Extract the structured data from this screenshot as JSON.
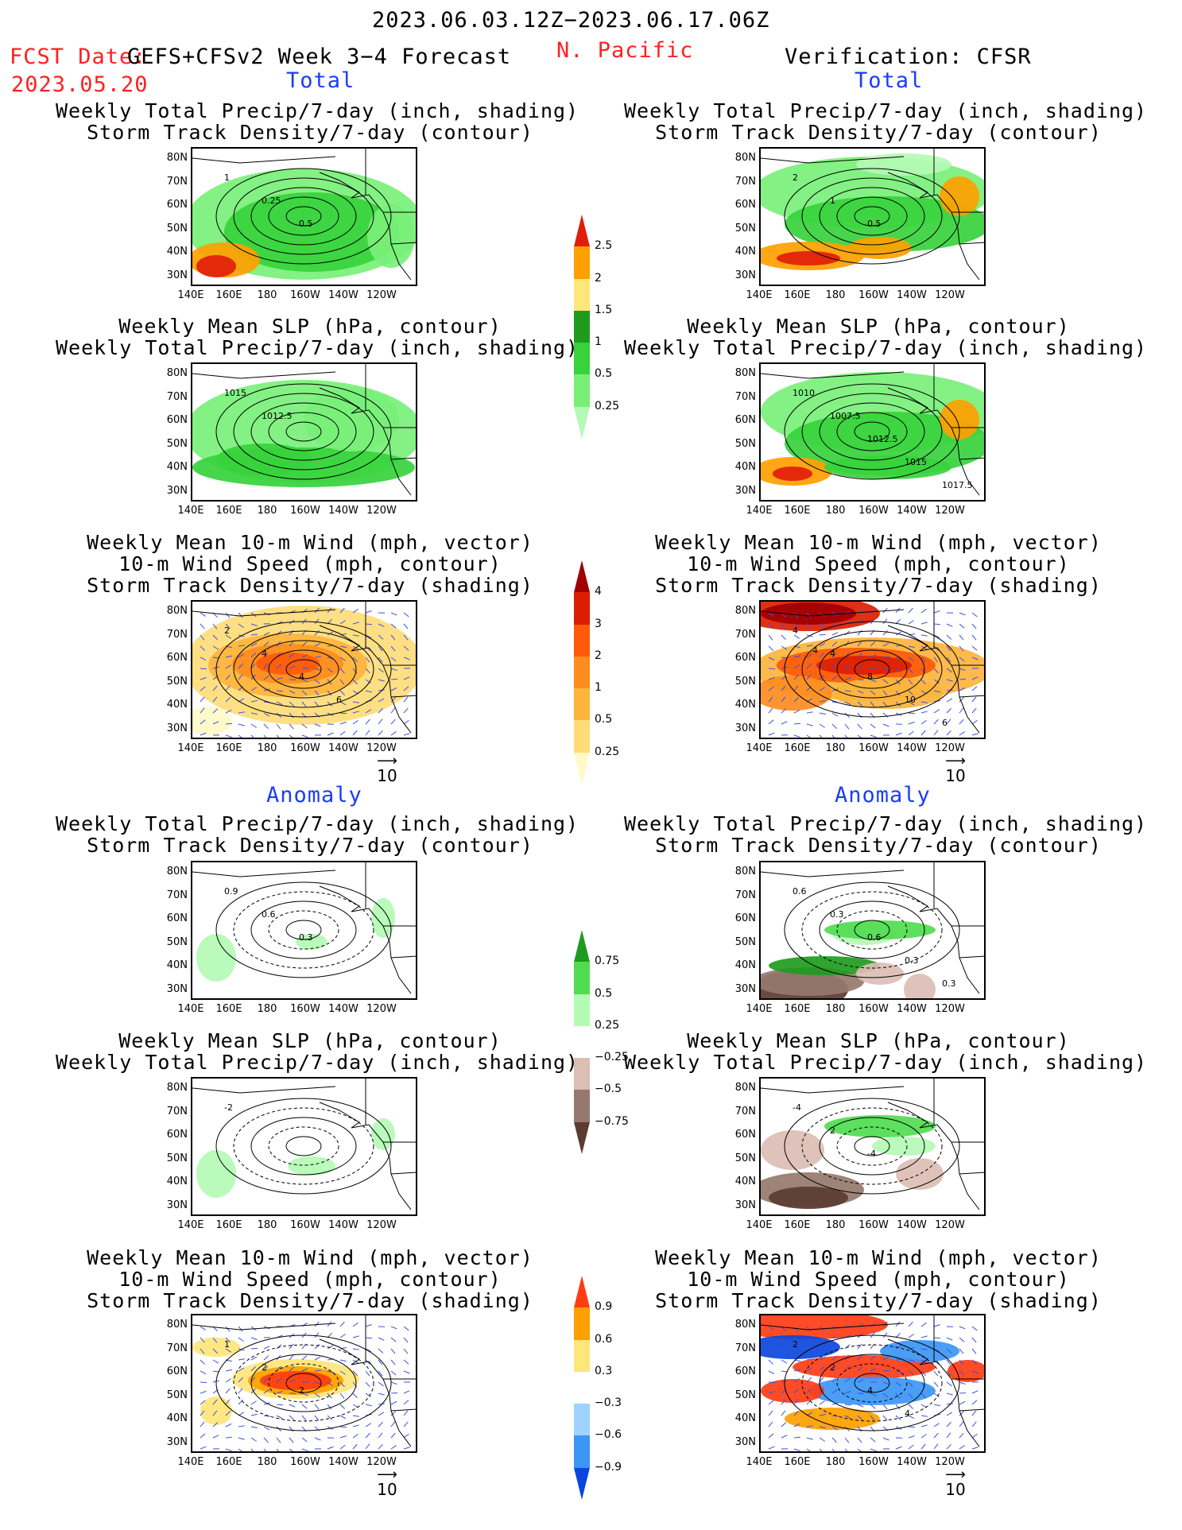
{
  "header": {
    "period": "2023.06.03.12Z−2023.06.17.06Z",
    "fcst_label": "FCST Date:",
    "model_label": "GEFS+CFSv2 Week 3−4 Forecast",
    "fcst_date": "2023.05.20",
    "region": "N. Pacific",
    "verification": "Verification: CFSR"
  },
  "sections": {
    "total": "Total",
    "anomaly": "Anomaly"
  },
  "panel_titles": {
    "precip_storm": "Weekly Total Precip/7-day (inch, shading)\nStorm Track Density/7-day (contour)",
    "slp_precip": "Weekly Mean SLP (hPa, contour)\nWeekly Total Precip/7-day (inch, shading)",
    "wind": "Weekly Mean 10-m Wind (mph, vector)\n10-m Wind Speed (mph, contour)\nStorm Track Density/7-day (shading)"
  },
  "axes": {
    "lat_labels": [
      "80N",
      "70N",
      "60N",
      "50N",
      "40N",
      "30N"
    ],
    "lon_labels": [
      "140E",
      "160E",
      "180",
      "160W",
      "140W",
      "120W"
    ]
  },
  "vector_ref": "10",
  "colorbars": {
    "precip_total": [
      "0.25",
      "0.5",
      "1",
      "1.5",
      "2",
      "2.5"
    ],
    "storm_total": [
      "0.25",
      "0.5",
      "1",
      "2",
      "3",
      "4"
    ],
    "precip_anom": [
      "−0.75",
      "−0.5",
      "−0.25",
      "0.25",
      "0.5",
      "0.75"
    ],
    "storm_anom": [
      "−0.9",
      "−0.6",
      "−0.3",
      "0.3",
      "0.6",
      "0.9"
    ]
  },
  "contour_labels": {
    "fcst_precip_total": [
      "1",
      "0.25",
      "0.5"
    ],
    "fcst_slp_total": [
      "1015",
      "1012.5"
    ],
    "fcst_wind_total": [
      "2",
      "4",
      "4",
      "6"
    ],
    "obs_precip_total": [
      "2",
      "1",
      "0.5"
    ],
    "obs_slp_total": [
      "1010",
      "1007.5",
      "1012.5",
      "1015",
      "1017.5"
    ],
    "obs_wind_total": [
      "4",
      "4",
      "8",
      "10",
      "6",
      "4"
    ],
    "fcst_precip_anom": [
      "0.9",
      "0.6",
      "0.3"
    ],
    "fcst_slp_anom": [
      "-2"
    ],
    "fcst_wind_anom": [
      "1",
      "2",
      "2"
    ],
    "obs_precip_anom": [
      "0.6",
      "0.3",
      "0.6",
      "0.3",
      "0.3"
    ],
    "obs_slp_anom": [
      "-4",
      "2",
      "-4"
    ],
    "obs_wind_anom": [
      "2",
      "2",
      "4",
      "4"
    ]
  },
  "colors": {
    "precip": [
      "#b4fab4",
      "#78f078",
      "#37d23c",
      "#1e9b1e",
      "#ffe678",
      "#ffa000",
      "#e11e0a"
    ],
    "storm": [
      "#fffac8",
      "#ffdc78",
      "#ffb43c",
      "#ff8c1e",
      "#ff5a0a",
      "#dc1e00",
      "#a00000"
    ],
    "precip_anom": [
      "#5a3c32",
      "#96786e",
      "#dcbeb4",
      "#ffffff",
      "#b4fab4",
      "#50dc50",
      "#1e9b1e"
    ],
    "storm_anom": [
      "#0a46dc",
      "#3c96f5",
      "#a0d2ff",
      "#ffffff",
      "#ffe678",
      "#ffa000",
      "#ff3c14"
    ]
  }
}
